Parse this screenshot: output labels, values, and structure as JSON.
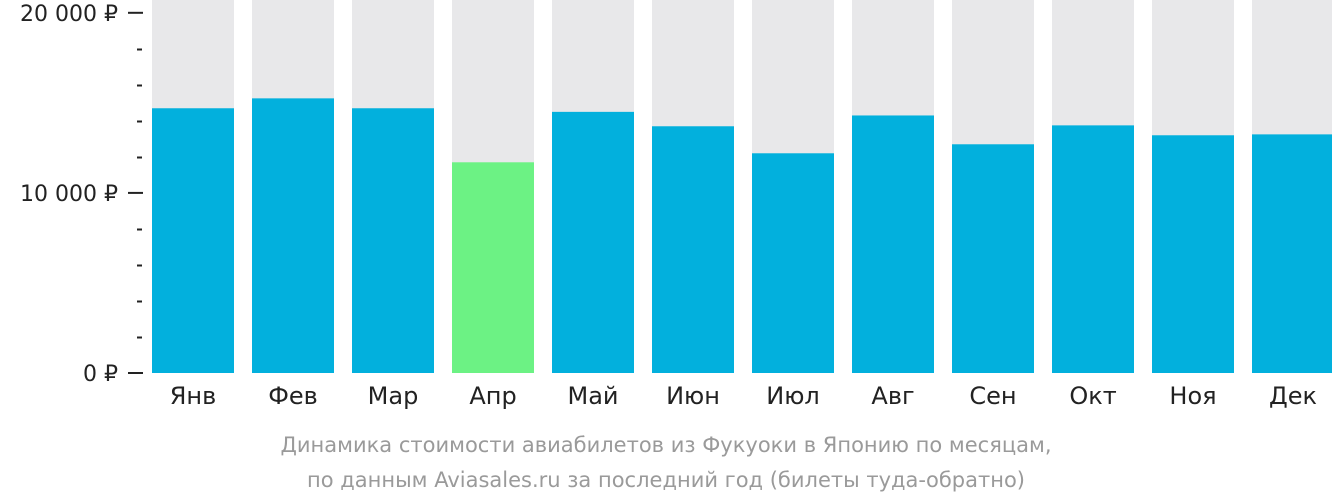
{
  "chart_data": {
    "type": "bar",
    "categories": [
      "Янв",
      "Фев",
      "Мар",
      "Апр",
      "Май",
      "Июн",
      "Июл",
      "Авг",
      "Сен",
      "Окт",
      "Ноя",
      "Дек"
    ],
    "values": [
      14700,
      15250,
      14700,
      11700,
      14500,
      13700,
      12200,
      14300,
      12700,
      13750,
      13200,
      13250
    ],
    "ylim": [
      0,
      20600
    ],
    "yticks": [
      {
        "value": 0,
        "label": "0 ₽"
      },
      {
        "value": 10000,
        "label": "10 000 ₽"
      },
      {
        "value": 20000,
        "label": "20 000 ₽"
      }
    ],
    "minor_tick_step": 2000,
    "highlight_index": 3,
    "grid": false,
    "legend": "none"
  },
  "colors": {
    "bar": "#02b0dd",
    "highlight": "#6cf284",
    "background_bar": "#e8e8ea",
    "axis": "#222222",
    "caption": "#9a9a9a"
  },
  "caption": {
    "line1": "Динамика стоимости авиабилетов из Фукуоки в Японию по месяцам,",
    "line2": "по данным Aviasales.ru за последний год (билеты туда-обратно)"
  }
}
